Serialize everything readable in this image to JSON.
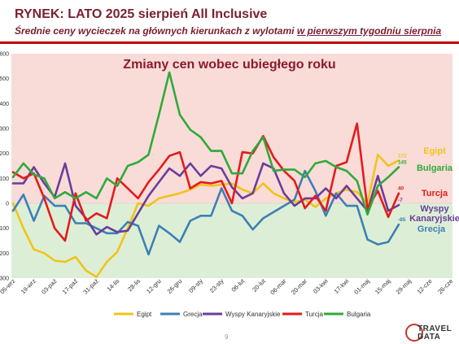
{
  "header": {
    "title": "RYNEK: LATO 2025 sierpień All Inclusive",
    "subtitle_part1": "Średnie ceny wycieczek na głównych kierunkach z wylotami ",
    "subtitle_part2": "w pierwszym tygodniu sierpnia"
  },
  "footer": {
    "page_number": "9",
    "logo_line1": "TRAVEL",
    "logo_line2": "DATA"
  },
  "colors": {
    "positive_bg": "#f9dcd8",
    "negative_bg": "#dcefd6",
    "Egipt": "#f0c419",
    "Grecja": "#3f7fb5",
    "Wyspy Kanaryjskie": "#6b3d9a",
    "Turcja": "#e31b1b",
    "Bulgaria": "#2eaa3b"
  },
  "chart_data": {
    "type": "line",
    "title": "Zmiany cen wobec ubiegłego roku",
    "ylim": [
      -300,
      600
    ],
    "yticks": [
      -300,
      -200,
      -100,
      0,
      100,
      200,
      300,
      400,
      500,
      600
    ],
    "x": [
      "05-wrz",
      "12-wrz",
      "19-wrz",
      "26-wrz",
      "03-paź",
      "10-paź",
      "17-paź",
      "24-paź",
      "31-paź",
      "07-lis",
      "14-lis",
      "21-lis",
      "28-lis",
      "05-gru",
      "12-gru",
      "19-gru",
      "26-gru",
      "02-sty",
      "09-sty",
      "16-sty",
      "23-sty",
      "30-sty",
      "06-lut",
      "13-lut",
      "20-lut",
      "27-lut",
      "06-mar",
      "13-mar",
      "20-mar",
      "27-mar",
      "03-kwi",
      "10-kwi",
      "17-kwi",
      "24-kwi",
      "01-maj",
      "08-maj",
      "15-maj",
      "22-maj",
      "29-maj",
      "05-cze",
      "12-cze",
      "19-cze",
      "26-cze"
    ],
    "xtick_labels": [
      "05-wrz",
      "19-wrz",
      "03-paź",
      "17-paź",
      "31-paź",
      "14-lis",
      "28-lis",
      "12-gru",
      "26-gru",
      "09-sty",
      "23-sty",
      "06-lut",
      "20-lut",
      "06-mar",
      "20-mar",
      "03-kwi",
      "17-kwi",
      "01-maj",
      "15-maj",
      "29-maj",
      "12-cze",
      "26-cze"
    ],
    "series": [
      {
        "name": "Egipt",
        "values": [
          0,
          -100,
          -185,
          -200,
          -230,
          -235,
          -215,
          -270,
          -295,
          -235,
          -195,
          -100,
          0,
          -10,
          20,
          30,
          40,
          55,
          75,
          70,
          75,
          80,
          55,
          40,
          80,
          40,
          20,
          5,
          15,
          -15,
          20,
          40,
          55,
          45,
          0,
          195,
          150,
          172,
          null,
          null,
          null,
          null,
          null
        ],
        "end_label": "172",
        "label": "Egipt"
      },
      {
        "name": "Grecja",
        "values": [
          -30,
          35,
          -70,
          30,
          -10,
          -10,
          -80,
          -80,
          -100,
          -120,
          -120,
          -75,
          -90,
          -205,
          -90,
          -120,
          -155,
          -70,
          -50,
          -50,
          60,
          -30,
          -50,
          -105,
          -60,
          -35,
          -10,
          15,
          130,
          50,
          -50,
          40,
          -10,
          -10,
          -145,
          -165,
          -155,
          -85,
          null,
          null,
          null,
          null,
          null
        ],
        "end_label": "-85",
        "label": "Grecja"
      },
      {
        "name": "Wyspy Kanaryjskie",
        "values": [
          80,
          80,
          145,
          80,
          25,
          160,
          -10,
          -60,
          -125,
          -95,
          -115,
          -110,
          -40,
          30,
          85,
          140,
          110,
          160,
          110,
          150,
          140,
          65,
          20,
          40,
          160,
          140,
          40,
          -10,
          20,
          20,
          60,
          20,
          70,
          20,
          -30,
          110,
          -30,
          -7,
          null,
          null,
          null,
          null,
          null
        ],
        "end_label": "-7",
        "label": "Wyspy Kanaryjskie"
      },
      {
        "name": "Turcja",
        "values": [
          125,
          100,
          120,
          20,
          -100,
          -150,
          40,
          -70,
          -40,
          -60,
          100,
          60,
          20,
          85,
          135,
          190,
          205,
          60,
          85,
          80,
          90,
          0,
          205,
          200,
          270,
          185,
          130,
          90,
          -20,
          30,
          -30,
          150,
          165,
          320,
          -20,
          50,
          -55,
          40,
          null,
          null,
          null,
          null,
          null
        ],
        "end_label": "40",
        "label": "Turcja"
      },
      {
        "name": "Bulgaria",
        "values": [
          105,
          160,
          115,
          100,
          20,
          45,
          20,
          45,
          20,
          100,
          70,
          150,
          165,
          195,
          355,
          525,
          355,
          295,
          265,
          210,
          210,
          120,
          120,
          210,
          265,
          130,
          135,
          135,
          105,
          160,
          170,
          145,
          130,
          90,
          -45,
          70,
          105,
          145,
          null,
          null,
          null,
          null,
          null
        ],
        "end_label": "145",
        "label": "Bulgaria"
      }
    ],
    "legend": [
      "Egipt",
      "Grecja",
      "Wyspy Kanaryjskie",
      "Turcja",
      "Bulgaria"
    ],
    "legend_placement": "bottom",
    "grid": false
  }
}
